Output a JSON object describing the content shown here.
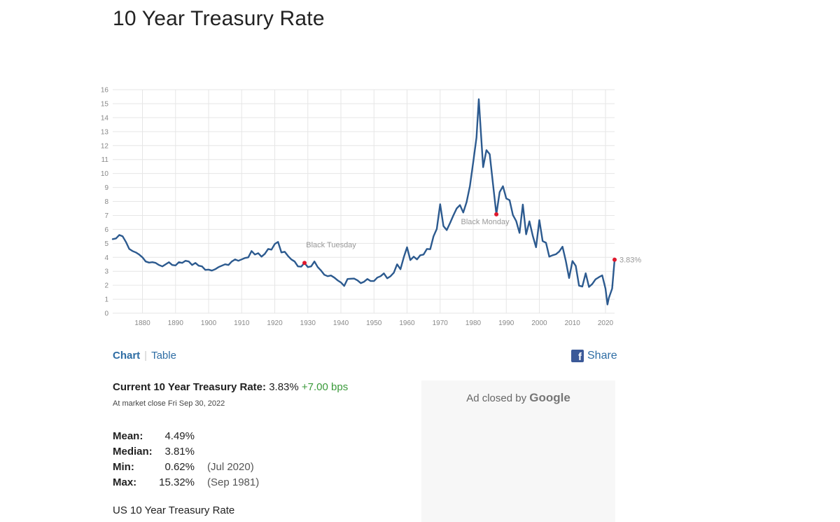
{
  "page": {
    "title": "10 Year Treasury Rate"
  },
  "tabs": [
    {
      "label": "Chart",
      "active": true
    },
    {
      "label": "Table",
      "active": false
    }
  ],
  "share": {
    "label": "Share",
    "icon": "facebook-icon"
  },
  "current": {
    "label": "Current 10 Year Treasury Rate:",
    "value": "3.83%",
    "change": "+7.00 bps",
    "market_close": "At market close Fri Sep 30, 2022"
  },
  "stats": {
    "mean": {
      "label": "Mean:",
      "value": "4.49%"
    },
    "median": {
      "label": "Median:",
      "value": "3.81%"
    },
    "min": {
      "label": "Min:",
      "value": "0.62%",
      "date": "(Jul 2020)"
    },
    "max": {
      "label": "Max:",
      "value": "15.32%",
      "date": "(Sep 1981)"
    }
  },
  "footer_title": "US 10 Year Treasury Rate",
  "ad": {
    "text": "Ad closed by",
    "brand": "Google"
  },
  "colors": {
    "line": "#2c5a8f",
    "marker": "#e0182d",
    "link": "#2e6da4",
    "positive": "#3a9a3a",
    "grid": "#e6e6e6"
  },
  "chart_data": {
    "type": "line",
    "title": "",
    "xlabel": "",
    "ylabel": "",
    "xlim": [
      1871,
      2022.75
    ],
    "ylim": [
      0,
      16
    ],
    "x_ticks": [
      1880,
      1890,
      1900,
      1910,
      1920,
      1930,
      1940,
      1950,
      1960,
      1970,
      1980,
      1990,
      2000,
      2010,
      2020
    ],
    "y_ticks": [
      0,
      1,
      2,
      3,
      4,
      5,
      6,
      7,
      8,
      9,
      10,
      11,
      12,
      13,
      14,
      15,
      16
    ],
    "grid": true,
    "series": [
      {
        "values": [
          [
            1871,
            5.3
          ],
          [
            1872,
            5.35
          ],
          [
            1873,
            5.6
          ],
          [
            1874,
            5.5
          ],
          [
            1875,
            5.1
          ],
          [
            1876,
            4.6
          ],
          [
            1877,
            4.45
          ],
          [
            1878,
            4.35
          ],
          [
            1879,
            4.2
          ],
          [
            1880,
            4.0
          ],
          [
            1881,
            3.7
          ],
          [
            1882,
            3.62
          ],
          [
            1883,
            3.65
          ],
          [
            1884,
            3.6
          ],
          [
            1885,
            3.45
          ],
          [
            1886,
            3.35
          ],
          [
            1887,
            3.5
          ],
          [
            1888,
            3.65
          ],
          [
            1889,
            3.45
          ],
          [
            1890,
            3.42
          ],
          [
            1891,
            3.65
          ],
          [
            1892,
            3.6
          ],
          [
            1893,
            3.75
          ],
          [
            1894,
            3.7
          ],
          [
            1895,
            3.45
          ],
          [
            1896,
            3.6
          ],
          [
            1897,
            3.4
          ],
          [
            1898,
            3.35
          ],
          [
            1899,
            3.1
          ],
          [
            1900,
            3.12
          ],
          [
            1901,
            3.05
          ],
          [
            1902,
            3.15
          ],
          [
            1903,
            3.3
          ],
          [
            1904,
            3.4
          ],
          [
            1905,
            3.5
          ],
          [
            1906,
            3.45
          ],
          [
            1907,
            3.7
          ],
          [
            1908,
            3.85
          ],
          [
            1909,
            3.75
          ],
          [
            1910,
            3.85
          ],
          [
            1911,
            3.95
          ],
          [
            1912,
            4.0
          ],
          [
            1913,
            4.45
          ],
          [
            1914,
            4.2
          ],
          [
            1915,
            4.3
          ],
          [
            1916,
            4.05
          ],
          [
            1917,
            4.25
          ],
          [
            1918,
            4.6
          ],
          [
            1919,
            4.55
          ],
          [
            1920,
            4.95
          ],
          [
            1921,
            5.1
          ],
          [
            1922,
            4.35
          ],
          [
            1923,
            4.4
          ],
          [
            1924,
            4.1
          ],
          [
            1925,
            3.85
          ],
          [
            1926,
            3.7
          ],
          [
            1927,
            3.35
          ],
          [
            1928,
            3.33
          ],
          [
            1929,
            3.6
          ],
          [
            1930,
            3.3
          ],
          [
            1931,
            3.35
          ],
          [
            1932,
            3.7
          ],
          [
            1933,
            3.3
          ],
          [
            1934,
            3.05
          ],
          [
            1935,
            2.75
          ],
          [
            1936,
            2.65
          ],
          [
            1937,
            2.7
          ],
          [
            1938,
            2.55
          ],
          [
            1939,
            2.35
          ],
          [
            1940,
            2.2
          ],
          [
            1941,
            1.95
          ],
          [
            1942,
            2.45
          ],
          [
            1943,
            2.47
          ],
          [
            1944,
            2.48
          ],
          [
            1945,
            2.35
          ],
          [
            1946,
            2.15
          ],
          [
            1947,
            2.25
          ],
          [
            1948,
            2.45
          ],
          [
            1949,
            2.3
          ],
          [
            1950,
            2.3
          ],
          [
            1951,
            2.55
          ],
          [
            1952,
            2.65
          ],
          [
            1953,
            2.85
          ],
          [
            1954,
            2.5
          ],
          [
            1955,
            2.65
          ],
          [
            1956,
            2.9
          ],
          [
            1957,
            3.5
          ],
          [
            1958,
            3.15
          ],
          [
            1959,
            4.0
          ],
          [
            1960,
            4.72
          ],
          [
            1961,
            3.8
          ],
          [
            1962,
            4.05
          ],
          [
            1963,
            3.85
          ],
          [
            1964,
            4.15
          ],
          [
            1965,
            4.2
          ],
          [
            1966,
            4.6
          ],
          [
            1967,
            4.58
          ],
          [
            1968,
            5.5
          ],
          [
            1969,
            6.04
          ],
          [
            1970,
            7.8
          ],
          [
            1971,
            6.24
          ],
          [
            1972,
            5.95
          ],
          [
            1973,
            6.45
          ],
          [
            1974,
            7.0
          ],
          [
            1975,
            7.5
          ],
          [
            1976,
            7.74
          ],
          [
            1977,
            7.21
          ],
          [
            1978,
            7.96
          ],
          [
            1979,
            9.1
          ],
          [
            1980,
            10.8
          ],
          [
            1981,
            12.57
          ],
          [
            1981.7,
            15.32
          ],
          [
            1982.3,
            13.0
          ],
          [
            1983,
            10.46
          ],
          [
            1984,
            11.67
          ],
          [
            1985,
            11.38
          ],
          [
            1986,
            9.19
          ],
          [
            1987,
            7.08
          ],
          [
            1988,
            8.67
          ],
          [
            1989,
            9.09
          ],
          [
            1990,
            8.21
          ],
          [
            1991,
            8.09
          ],
          [
            1992,
            7.03
          ],
          [
            1993,
            6.6
          ],
          [
            1994,
            5.75
          ],
          [
            1995,
            7.78
          ],
          [
            1996,
            5.65
          ],
          [
            1997,
            6.58
          ],
          [
            1998,
            5.54
          ],
          [
            1999,
            4.72
          ],
          [
            2000,
            6.66
          ],
          [
            2001,
            5.16
          ],
          [
            2002,
            5.04
          ],
          [
            2003,
            4.05
          ],
          [
            2004,
            4.15
          ],
          [
            2005,
            4.22
          ],
          [
            2006,
            4.42
          ],
          [
            2007,
            4.76
          ],
          [
            2008,
            3.74
          ],
          [
            2009,
            2.52
          ],
          [
            2010,
            3.73
          ],
          [
            2011,
            3.39
          ],
          [
            2012,
            1.97
          ],
          [
            2013,
            1.91
          ],
          [
            2014,
            2.86
          ],
          [
            2015,
            1.88
          ],
          [
            2016,
            2.09
          ],
          [
            2017,
            2.43
          ],
          [
            2018,
            2.58
          ],
          [
            2019,
            2.71
          ],
          [
            2020,
            1.76
          ],
          [
            2020.6,
            0.62
          ],
          [
            2021,
            1.08
          ],
          [
            2022,
            1.76
          ],
          [
            2022.75,
            3.83
          ]
        ]
      }
    ],
    "annotations": [
      {
        "x": 1929,
        "y": 3.6,
        "label": "Black Tuesday"
      },
      {
        "x": 1987,
        "y": 7.08,
        "label": "Black Monday"
      },
      {
        "x": 2022.75,
        "y": 3.83,
        "label": "3.83%"
      }
    ]
  }
}
